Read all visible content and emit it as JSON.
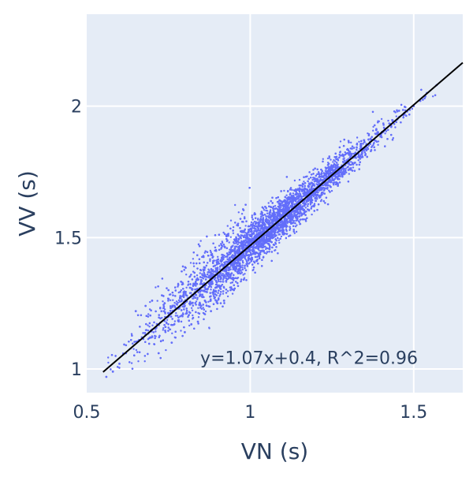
{
  "chart_data": {
    "type": "scatter",
    "title": "",
    "xlabel": "VN (s)",
    "ylabel": "VV (s)",
    "xlim": [
      0.5,
      1.65
    ],
    "ylim": [
      0.91,
      2.35
    ],
    "x_ticks": [
      {
        "value": 0.5,
        "label": "0.5"
      },
      {
        "value": 1.0,
        "label": "1"
      },
      {
        "value": 1.5,
        "label": "1.5"
      }
    ],
    "y_ticks": [
      {
        "value": 1.0,
        "label": "1"
      },
      {
        "value": 1.5,
        "label": "1.5"
      },
      {
        "value": 2.0,
        "label": "2"
      }
    ],
    "grid": true,
    "colors": {
      "plot_background": "#e5ecf6",
      "grid": "#ffffff",
      "points": "#636efa",
      "fit_line": "#000000",
      "text": "#2a3f5f"
    },
    "series": [
      {
        "x": [
          0.56,
          0.58,
          0.6,
          0.62,
          0.66,
          0.68,
          0.7,
          0.72,
          0.75,
          0.78,
          0.8,
          0.83,
          0.85,
          0.88,
          0.9,
          0.93,
          0.95,
          0.98,
          1.0,
          1.02,
          1.05,
          1.08,
          1.1,
          1.12,
          1.15,
          1.18,
          1.2,
          1.22,
          1.25,
          1.28,
          1.3,
          1.33,
          1.35,
          1.38,
          1.4,
          1.43,
          1.45,
          1.48,
          1.5,
          1.52,
          1.54,
          1.57,
          0.65,
          0.68,
          0.7,
          0.73,
          0.75,
          0.78,
          0.72,
          0.76,
          0.8,
          0.84,
          0.88,
          0.92,
          0.95,
          0.98,
          1.05,
          1.1,
          1.15,
          1.2,
          0.82,
          0.86,
          0.9,
          0.94
        ],
        "y": [
          0.97,
          0.99,
          1.02,
          1.06,
          1.11,
          1.13,
          1.15,
          1.17,
          1.2,
          1.23,
          1.25,
          1.29,
          1.31,
          1.34,
          1.36,
          1.39,
          1.41,
          1.44,
          1.47,
          1.49,
          1.53,
          1.56,
          1.58,
          1.6,
          1.63,
          1.66,
          1.68,
          1.7,
          1.73,
          1.77,
          1.79,
          1.82,
          1.84,
          1.87,
          1.89,
          1.93,
          1.95,
          1.98,
          2.0,
          2.02,
          2.05,
          2.08,
          1.22,
          1.24,
          1.26,
          1.28,
          1.3,
          1.32,
          1.06,
          1.1,
          1.14,
          1.18,
          1.22,
          1.26,
          1.3,
          1.34,
          1.46,
          1.52,
          1.58,
          1.64,
          1.17,
          1.21,
          1.25,
          1.3
        ]
      }
    ],
    "fit_line": {
      "slope": 1.07,
      "intercept": 0.4,
      "x_range": [
        0.55,
        1.65
      ]
    },
    "annotations": [
      {
        "text": "y=1.07x+0.4,  R^2=0.96",
        "x": 1.18,
        "y": 1.02
      }
    ]
  }
}
